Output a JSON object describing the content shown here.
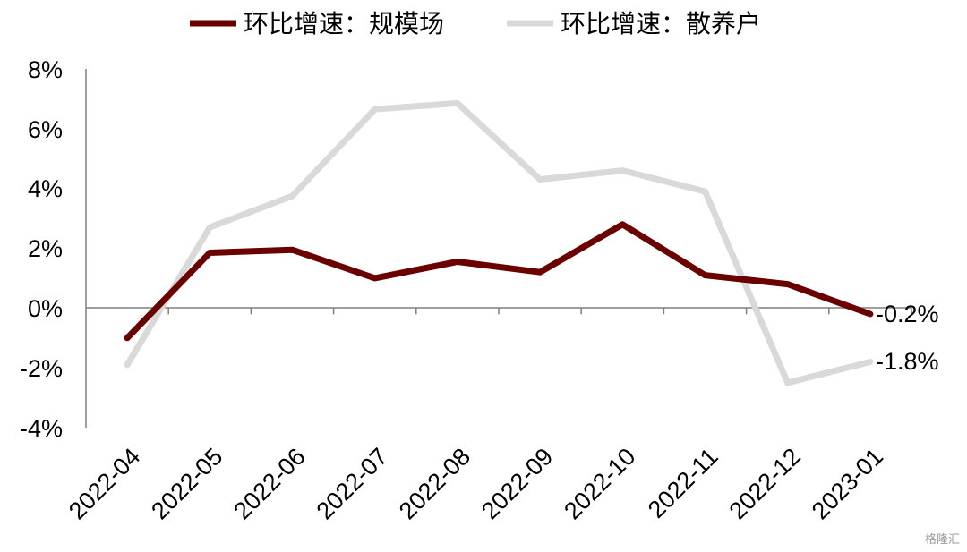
{
  "chart_data": {
    "type": "line",
    "categories": [
      "2022-04",
      "2022-05",
      "2022-06",
      "2022-07",
      "2022-08",
      "2022-09",
      "2022-10",
      "2022-11",
      "2022-12",
      "2023-01"
    ],
    "series": [
      {
        "name": "环比增速：规模场",
        "color": "#6b0000",
        "values": [
          -1.0,
          1.85,
          1.95,
          1.0,
          1.55,
          1.2,
          2.8,
          1.1,
          0.8,
          -0.2
        ]
      },
      {
        "name": "环比增速：散养户",
        "color": "#d9d9d9",
        "values": [
          -1.9,
          2.7,
          3.75,
          6.65,
          6.85,
          4.3,
          4.6,
          3.9,
          -2.5,
          -1.8
        ]
      }
    ],
    "yticks": [
      "8%",
      "6%",
      "4%",
      "2%",
      "0%",
      "-2%",
      "-4%"
    ],
    "ylim": [
      -4,
      8
    ],
    "grid": false,
    "legend_position": "top",
    "end_labels": [
      "-0.2%",
      "-1.8%"
    ]
  },
  "watermark": "格隆汇"
}
